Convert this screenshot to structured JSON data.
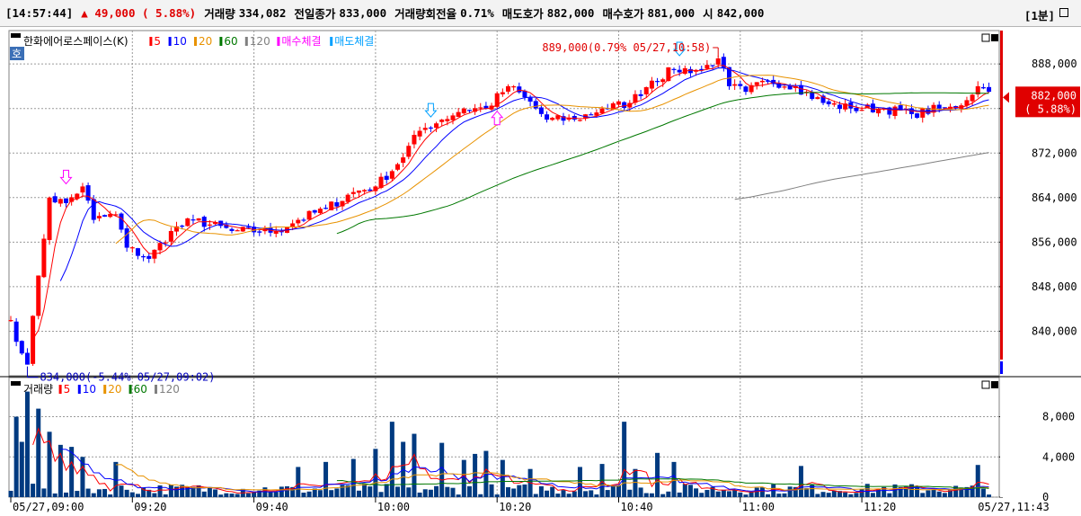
{
  "header": {
    "time": "[14:57:44]",
    "change": "▲ 49,000 ( 5.88%)",
    "volume_label": "거래량",
    "volume": "334,082",
    "prev_close_label": "전일종가",
    "prev_close": "833,000",
    "turnover_label": "거래량회전율",
    "turnover": "0.71%",
    "ask_label": "매도호가",
    "ask": "882,000",
    "bid_label": "매수호가",
    "bid": "881,000",
    "open_label": "시",
    "open": "842,000",
    "period": "[1분]"
  },
  "colors": {
    "up": "#ff0000",
    "down": "#0000ff",
    "ma5": "#ff0000",
    "ma10": "#0000ff",
    "ma20": "#e89200",
    "ma60": "#007800",
    "ma120": "#808080",
    "buy_mark": "#ff00ff",
    "sell_mark": "#00a0ff",
    "vol_bar": "#003a80"
  },
  "chart_data": [
    {
      "type": "candlestick",
      "title": "한화에어로스페이스(K)",
      "legend": [
        "5",
        "10",
        "20",
        "60",
        "120",
        "매수체결",
        "매도체결"
      ],
      "hoga_label": "호",
      "ylim": [
        832000,
        894000
      ],
      "yticks": [
        "888,000",
        "880,000",
        "872,000",
        "864,000",
        "856,000",
        "848,000",
        "840,000"
      ],
      "x_labels": [
        "05/27,09:00",
        "09:20",
        "09:40",
        "10:00",
        "10:20",
        "10:40",
        "11:00",
        "11:20",
        "05/27,11:43"
      ],
      "current_price": "882,000",
      "current_change": "( 5.88%)",
      "high_annotation": "889,000(0.79% 05/27,10:58)",
      "low_annotation": "834,000(-5.44% 05/27,09:02)",
      "anchors": [
        [
          0,
          842000
        ],
        [
          2,
          836000
        ],
        [
          3,
          834000
        ],
        [
          5,
          850000
        ],
        [
          7,
          864000
        ],
        [
          10,
          863000
        ],
        [
          13,
          866000
        ],
        [
          15,
          860000
        ],
        [
          19,
          861000
        ],
        [
          21,
          855000
        ],
        [
          25,
          853000
        ],
        [
          29,
          858000
        ],
        [
          33,
          860000
        ],
        [
          40,
          858000
        ],
        [
          48,
          858000
        ],
        [
          52,
          860000
        ],
        [
          57,
          862000
        ],
        [
          62,
          865000
        ],
        [
          66,
          866000
        ],
        [
          70,
          870000
        ],
        [
          74,
          876000
        ],
        [
          78,
          878000
        ],
        [
          82,
          880000
        ],
        [
          86,
          880000
        ],
        [
          90,
          884000
        ],
        [
          93,
          882000
        ],
        [
          97,
          878000
        ],
        [
          102,
          878000
        ],
        [
          107,
          880000
        ],
        [
          112,
          881000
        ],
        [
          116,
          885000
        ],
        [
          120,
          887000
        ],
        [
          125,
          887000
        ],
        [
          128,
          889000
        ],
        [
          130,
          884000
        ],
        [
          133,
          883000
        ],
        [
          137,
          885000
        ],
        [
          142,
          884000
        ],
        [
          147,
          881000
        ],
        [
          152,
          880000
        ],
        [
          158,
          880000
        ],
        [
          163,
          879000
        ],
        [
          168,
          880000
        ],
        [
          171,
          880000
        ],
        [
          175,
          884000
        ],
        [
          177,
          883000
        ]
      ]
    },
    {
      "type": "bar",
      "title": "거래량",
      "legend": [
        "5",
        "10",
        "20",
        "60",
        "120"
      ],
      "ylim": [
        0,
        11000
      ],
      "yticks": [
        "8,000",
        "4,000",
        "0"
      ],
      "spikes": [
        [
          3,
          10500
        ],
        [
          1,
          8000
        ],
        [
          5,
          8800
        ],
        [
          7,
          6500
        ],
        [
          9,
          5200
        ],
        [
          2,
          5500
        ],
        [
          11,
          5000
        ],
        [
          13,
          4000
        ],
        [
          19,
          3500
        ],
        [
          52,
          3000
        ],
        [
          57,
          3500
        ],
        [
          62,
          3800
        ],
        [
          66,
          4800
        ],
        [
          69,
          7500
        ],
        [
          71,
          5500
        ],
        [
          73,
          6300
        ],
        [
          78,
          5400
        ],
        [
          82,
          3700
        ],
        [
          84,
          4300
        ],
        [
          86,
          4600
        ],
        [
          89,
          3700
        ],
        [
          94,
          2800
        ],
        [
          103,
          3000
        ],
        [
          107,
          3300
        ],
        [
          111,
          7500
        ],
        [
          113,
          2800
        ],
        [
          117,
          4400
        ],
        [
          120,
          3500
        ],
        [
          143,
          3100
        ],
        [
          158,
          1000
        ],
        [
          175,
          3200
        ]
      ]
    }
  ]
}
